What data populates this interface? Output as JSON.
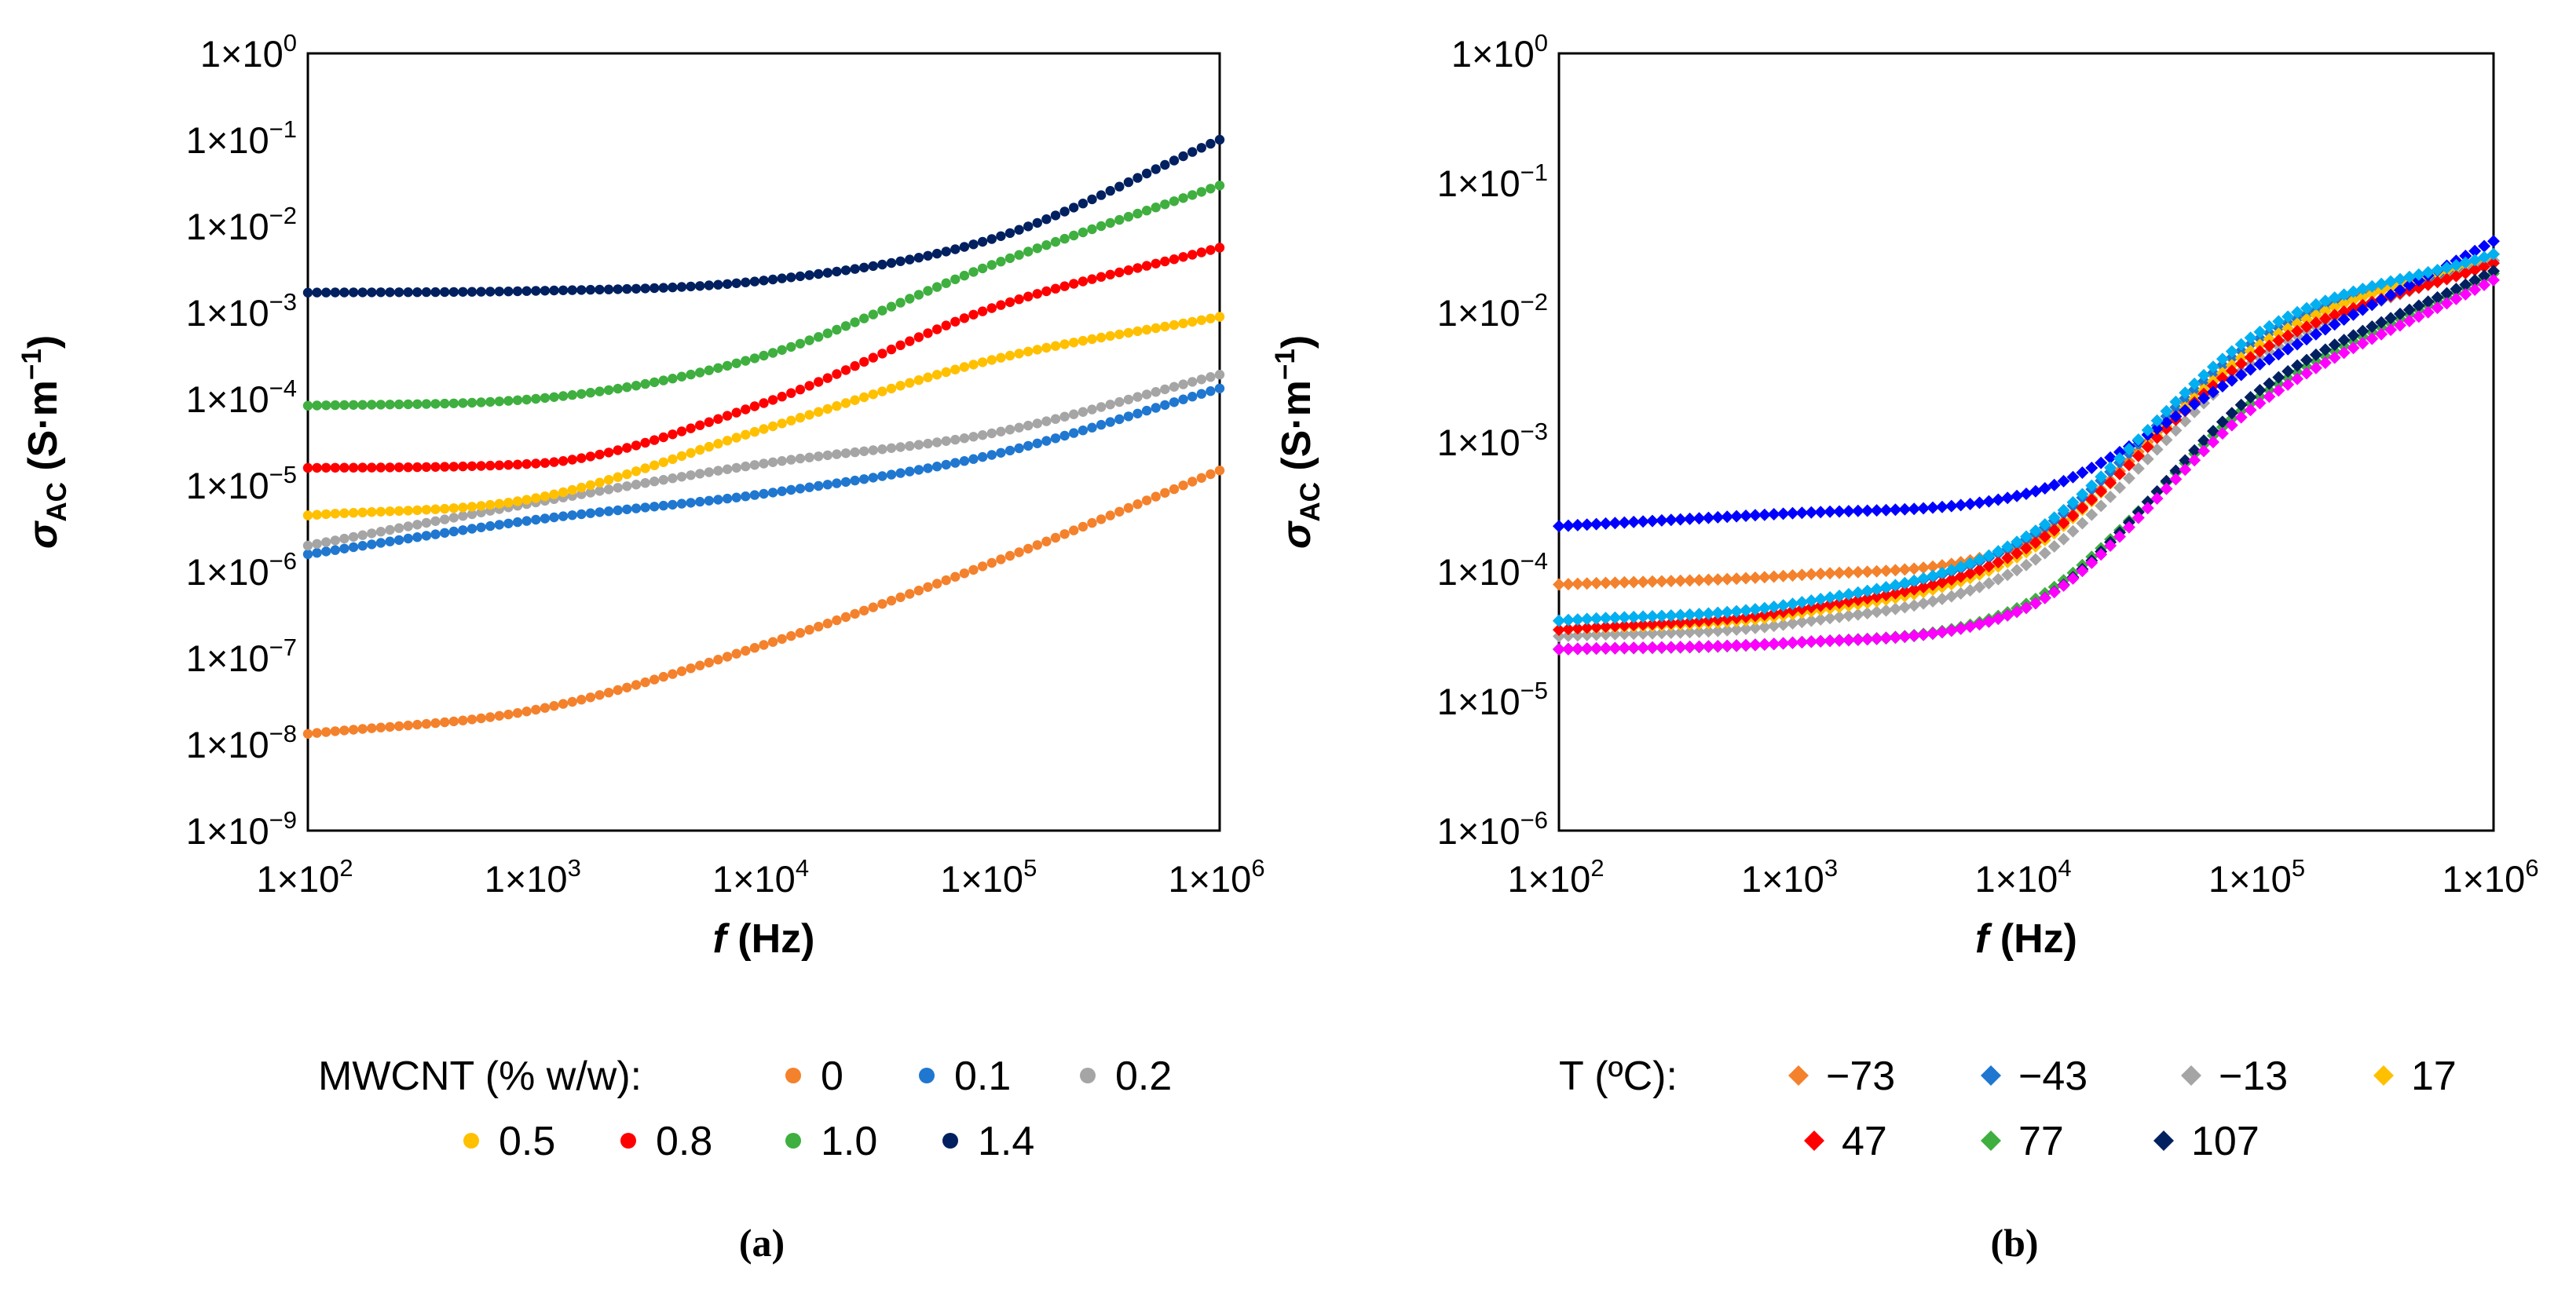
{
  "chart_data": [
    {
      "panel": "(a)",
      "type": "scatter",
      "xscale": "log",
      "yscale": "log",
      "xlim": [
        100,
        1000000
      ],
      "ylim": [
        1e-09,
        1
      ],
      "xlabel": "f (Hz)",
      "ylabel": "σAC (S·m−1)",
      "xlabel_italic": "f",
      "xlabel_rest": " (Hz)",
      "ylabel_sym": "σ",
      "ylabel_sub": "AC",
      "ylabel_unit": " (S·m",
      "ylabel_exp": "−1",
      "ylabel_close": ")",
      "x_ticks": [
        {
          "base": "1×10",
          "exp": "2"
        },
        {
          "base": "1×10",
          "exp": "3"
        },
        {
          "base": "1×10",
          "exp": "4"
        },
        {
          "base": "1×10",
          "exp": "5"
        },
        {
          "base": "1×10",
          "exp": "6"
        }
      ],
      "y_ticks": [
        {
          "base": "1×10",
          "exp": "0"
        },
        {
          "base": "1×10",
          "exp": "−1"
        },
        {
          "base": "1×10",
          "exp": "−2"
        },
        {
          "base": "1×10",
          "exp": "−3"
        },
        {
          "base": "1×10",
          "exp": "−4"
        },
        {
          "base": "1×10",
          "exp": "−5"
        },
        {
          "base": "1×10",
          "exp": "−6"
        },
        {
          "base": "1×10",
          "exp": "−7"
        },
        {
          "base": "1×10",
          "exp": "−8"
        },
        {
          "base": "1×10",
          "exp": "−9"
        }
      ],
      "legend_title": "MWCNT (% w/w):",
      "legend_position": "bottom",
      "marker": "circle",
      "points_per_series": 101,
      "series": [
        {
          "name": "0",
          "color": "#F4812C",
          "logx": [
            2,
            3,
            4,
            5,
            6
          ],
          "logy": [
            -7.88,
            -7.6,
            -6.85,
            -5.9,
            -4.83
          ]
        },
        {
          "name": "0.1",
          "color": "#1F77D0",
          "logx": [
            2,
            3,
            4,
            5,
            6
          ],
          "logy": [
            -5.8,
            -5.4,
            -5.1,
            -4.65,
            -3.88
          ]
        },
        {
          "name": "0.2",
          "color": "#A5A5A5",
          "logx": [
            2,
            3,
            4,
            5,
            6
          ],
          "logy": [
            -5.7,
            -5.2,
            -4.75,
            -4.4,
            -3.72
          ]
        },
        {
          "name": "0.5",
          "color": "#FFC000",
          "logx": [
            2,
            3,
            4,
            5,
            6
          ],
          "logy": [
            -5.35,
            -5.15,
            -4.35,
            -3.55,
            -3.05
          ]
        },
        {
          "name": "0.8",
          "color": "#FF0000",
          "logx": [
            2,
            3,
            4,
            5,
            6
          ],
          "logy": [
            -4.8,
            -4.75,
            -4.05,
            -2.95,
            -2.25
          ]
        },
        {
          "name": "1.0",
          "color": "#3FAF3F",
          "logx": [
            2,
            3,
            4,
            5,
            6
          ],
          "logy": [
            -4.08,
            -4.0,
            -3.5,
            -2.45,
            -1.53
          ]
        },
        {
          "name": "1.4",
          "color": "#002060",
          "logx": [
            2,
            3,
            4,
            5,
            6
          ],
          "logy": [
            -2.77,
            -2.75,
            -2.63,
            -2.15,
            -1.0
          ]
        }
      ]
    },
    {
      "panel": "(b)",
      "type": "scatter",
      "xscale": "log",
      "yscale": "log",
      "xlim": [
        100,
        1000000
      ],
      "ylim": [
        1e-06,
        1
      ],
      "xlabel": "f (Hz)",
      "ylabel": "σAC (S·m−1)",
      "xlabel_italic": "f",
      "xlabel_rest": " (Hz)",
      "ylabel_sym": "σ",
      "ylabel_sub": "AC",
      "ylabel_unit": " (S·m",
      "ylabel_exp": "−1",
      "ylabel_close": ")",
      "x_ticks": [
        {
          "base": "1×10",
          "exp": "2"
        },
        {
          "base": "1×10",
          "exp": "3"
        },
        {
          "base": "1×10",
          "exp": "4"
        },
        {
          "base": "1×10",
          "exp": "5"
        },
        {
          "base": "1×10",
          "exp": "6"
        }
      ],
      "y_ticks": [
        {
          "base": "1×10",
          "exp": "0"
        },
        {
          "base": "1×10",
          "exp": "−1"
        },
        {
          "base": "1×10",
          "exp": "−2"
        },
        {
          "base": "1×10",
          "exp": "−3"
        },
        {
          "base": "1×10",
          "exp": "−4"
        },
        {
          "base": "1×10",
          "exp": "−5"
        },
        {
          "base": "1×10",
          "exp": "−6"
        }
      ],
      "legend_title": "T (ºC):",
      "legend_position": "bottom",
      "marker": "diamond",
      "points_per_series": 101,
      "series": [
        {
          "name": "−73",
          "color": "#F4812C",
          "logx": [
            2,
            3,
            4,
            5,
            6
          ],
          "logy": [
            -4.1,
            -4.03,
            -3.78,
            -2.2,
            -1.55
          ]
        },
        {
          "name": "−43",
          "color": "#1F77D0",
          "logx": [
            2,
            3,
            4,
            5,
            6
          ],
          "logy": [
            -4.38,
            -4.25,
            -3.75,
            -2.2,
            -1.6
          ]
        },
        {
          "name": "−13",
          "color": "#A5A5A5",
          "logx": [
            2,
            3,
            4,
            5,
            6
          ],
          "logy": [
            -4.5,
            -4.4,
            -3.95,
            -2.35,
            -1.6
          ]
        },
        {
          "name": "17",
          "color": "#FFC000",
          "logx": [
            2,
            3,
            4,
            5,
            6
          ],
          "logy": [
            -4.45,
            -4.33,
            -3.85,
            -2.25,
            -1.55
          ]
        },
        {
          "name": "47",
          "color": "#FF0000",
          "logx": [
            2,
            3,
            4,
            5,
            6
          ],
          "logy": [
            -4.45,
            -4.3,
            -3.82,
            -2.3,
            -1.62
          ]
        },
        {
          "name": "77",
          "color": "#3FAF3F",
          "logx": [
            2,
            3,
            4,
            5,
            6
          ],
          "logy": [
            -4.6,
            -4.55,
            -4.25,
            -2.65,
            -1.7
          ]
        },
        {
          "name": "107",
          "color": "#002060",
          "logx": [
            2,
            3,
            4,
            5,
            6
          ],
          "logy": [
            -4.6,
            -4.55,
            -4.28,
            -2.6,
            -1.68
          ]
        },
        {
          "name": "",
          "color": "#FF00FF",
          "logx": [
            2,
            3,
            4,
            5,
            6
          ],
          "logy": [
            -4.6,
            -4.55,
            -4.28,
            -2.7,
            -1.75
          ]
        },
        {
          "name": "",
          "color": "#0000FF",
          "logx": [
            2,
            3,
            4,
            5,
            6
          ],
          "logy": [
            -3.65,
            -3.55,
            -3.4,
            -2.4,
            -1.45
          ]
        },
        {
          "name": "",
          "color": "#00B0F0",
          "logx": [
            2,
            3,
            4,
            5,
            6
          ],
          "logy": [
            -4.38,
            -4.25,
            -3.73,
            -2.15,
            -1.55
          ]
        }
      ]
    }
  ]
}
